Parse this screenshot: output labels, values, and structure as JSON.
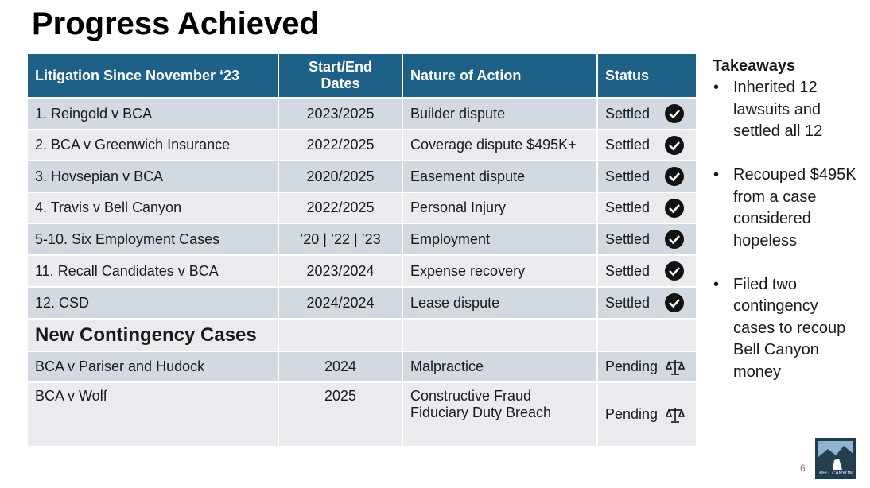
{
  "header": {
    "title": "Progress Achieved"
  },
  "table": {
    "columns": [
      "Litigation Since November ‘23",
      [
        "Start/End",
        "Dates"
      ],
      "Nature of Action",
      "Status"
    ],
    "rows": [
      [
        "1. Reingold v BCA",
        "2023/2025",
        "Builder dispute",
        "Settled"
      ],
      [
        "2. BCA v Greenwich Insurance",
        "2022/2025",
        "Coverage dispute $495K+",
        "Settled"
      ],
      [
        "3. Hovsepian v BCA",
        "2020/2025",
        "Easement dispute",
        "Settled"
      ],
      [
        "4. Travis v Bell Canyon",
        "2022/2025",
        "Personal Injury",
        "Settled"
      ],
      [
        "5-10. Six Employment Cases",
        "’20 | ’22 | ’23",
        "Employment",
        "Settled"
      ],
      [
        "11. Recall Candidates v BCA",
        "2023/2024",
        "Expense recovery",
        "Settled"
      ],
      [
        "12. CSD",
        "2024/2024",
        "Lease dispute",
        "Settled"
      ]
    ],
    "section": "New Contingency Cases",
    "contingency_rows": [
      [
        "BCA v Pariser and Hudock",
        "2024",
        "Malpractice",
        "Pending"
      ],
      [
        "BCA v Wolf",
        "2025",
        [
          "Constructive Fraud",
          "Fiduciary Duty Breach"
        ],
        "Pending"
      ]
    ]
  },
  "takeaways": {
    "title": "Takeaways",
    "bullets": [
      [
        "Inherited 12",
        "lawsuits and",
        "settled all 12"
      ],
      [
        "Recouped $495K",
        "from a case",
        "considered",
        "hopeless"
      ],
      [
        "Filed two",
        "contingency",
        "cases to recoup",
        "Bell Canyon",
        "money"
      ]
    ]
  },
  "page_number": "6",
  "logo": "BELL CANYON"
}
